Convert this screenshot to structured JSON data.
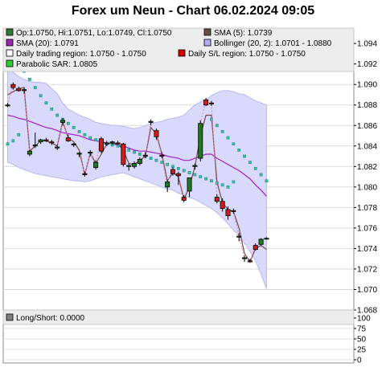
{
  "title": "Forex um Neun - Chart 06.02.2024 09:05",
  "legend": [
    {
      "text": "Op:1.0750, Hi:1.0751, Lo:1.0749, Cl:1.0750",
      "color": "#2e7d32"
    },
    {
      "text": "SMA (5): 1.0739",
      "color": "#6d4c41"
    },
    {
      "text": "SMA (20): 1.0791",
      "color": "#9c27b0"
    },
    {
      "text": "Bollinger (20, 2): 1.0701 - 1.0880",
      "color": "#b0b0f0"
    },
    {
      "text": "Daily trading region: 1.0750 - 1.0750",
      "color": "#ffffff"
    },
    {
      "text": "Daily S/L region: 1.0750 - 1.0750",
      "color": "#d50000"
    },
    {
      "text": "Parabolic SAR: 1.0805",
      "color": "#33cc33"
    }
  ],
  "lower_legend": {
    "text": "Long/Short: 0.0000",
    "color": "#808080"
  },
  "chart_data": [
    {
      "type": "candlestick",
      "title": "Forex um Neun - Chart 06.02.2024 09:05",
      "ylim": [
        1.068,
        1.0955
      ],
      "yticks": [
        "1.068",
        "1.070",
        "1.072",
        "1.074",
        "1.076",
        "1.078",
        "1.080",
        "1.082",
        "1.084",
        "1.086",
        "1.088",
        "1.090",
        "1.092",
        "1.094"
      ],
      "candles": [
        {
          "o": 1.088,
          "h": 1.0882,
          "l": 1.0878,
          "c": 1.088
        },
        {
          "o": 1.09,
          "h": 1.0902,
          "l": 1.0895,
          "c": 1.0897
        },
        {
          "o": 1.0896,
          "h": 1.0898,
          "l": 1.0893,
          "c": 1.0894
        },
        {
          "o": 1.0895,
          "h": 1.0897,
          "l": 1.0891,
          "c": 1.0894
        },
        {
          "o": 1.0832,
          "h": 1.0836,
          "l": 1.083,
          "c": 1.0835
        },
        {
          "o": 1.084,
          "h": 1.0853,
          "l": 1.0838,
          "c": 1.0841
        },
        {
          "o": 1.0844,
          "h": 1.0847,
          "l": 1.0842,
          "c": 1.0846
        },
        {
          "o": 1.0846,
          "h": 1.0848,
          "l": 1.0844,
          "c": 1.0845
        },
        {
          "o": 1.0844,
          "h": 1.0846,
          "l": 1.0841,
          "c": 1.0843
        },
        {
          "o": 1.0838,
          "h": 1.0841,
          "l": 1.0836,
          "c": 1.0839
        },
        {
          "o": 1.0863,
          "h": 1.0867,
          "l": 1.086,
          "c": 1.0865
        },
        {
          "o": 1.0848,
          "h": 1.0851,
          "l": 1.0844,
          "c": 1.0845
        },
        {
          "o": 1.0841,
          "h": 1.0843,
          "l": 1.0839,
          "c": 1.0842
        },
        {
          "o": 1.0832,
          "h": 1.0834,
          "l": 1.0829,
          "c": 1.0833
        },
        {
          "o": 1.0813,
          "h": 1.0815,
          "l": 1.081,
          "c": 1.0812
        },
        {
          "o": 1.0833,
          "h": 1.0836,
          "l": 1.083,
          "c": 1.0834
        },
        {
          "o": 1.0819,
          "h": 1.0826,
          "l": 1.0817,
          "c": 1.0824
        },
        {
          "o": 1.0847,
          "h": 1.0849,
          "l": 1.0833,
          "c": 1.0835
        },
        {
          "o": 1.0842,
          "h": 1.0845,
          "l": 1.084,
          "c": 1.0843
        },
        {
          "o": 1.0843,
          "h": 1.0845,
          "l": 1.0841,
          "c": 1.0844
        },
        {
          "o": 1.0843,
          "h": 1.0845,
          "l": 1.0841,
          "c": 1.0842
        },
        {
          "o": 1.0842,
          "h": 1.0843,
          "l": 1.082,
          "c": 1.0822
        },
        {
          "o": 1.082,
          "h": 1.0823,
          "l": 1.0816,
          "c": 1.0821
        },
        {
          "o": 1.082,
          "h": 1.0825,
          "l": 1.0818,
          "c": 1.0823
        },
        {
          "o": 1.0823,
          "h": 1.0829,
          "l": 1.0821,
          "c": 1.0827
        },
        {
          "o": 1.0831,
          "h": 1.0834,
          "l": 1.0828,
          "c": 1.083
        },
        {
          "o": 1.0863,
          "h": 1.0866,
          "l": 1.086,
          "c": 1.0864
        },
        {
          "o": 1.0855,
          "h": 1.0857,
          "l": 1.0846,
          "c": 1.0849
        },
        {
          "o": 1.0831,
          "h": 1.0834,
          "l": 1.0828,
          "c": 1.083
        },
        {
          "o": 1.08,
          "h": 1.0807,
          "l": 1.0795,
          "c": 1.0805
        },
        {
          "o": 1.0817,
          "h": 1.0819,
          "l": 1.0811,
          "c": 1.0813
        },
        {
          "o": 1.0813,
          "h": 1.0815,
          "l": 1.0802,
          "c": 1.0811
        },
        {
          "o": 1.079,
          "h": 1.0792,
          "l": 1.0785,
          "c": 1.0787
        },
        {
          "o": 1.0796,
          "h": 1.0807,
          "l": 1.079,
          "c": 1.0809
        },
        {
          "o": 1.082,
          "h": 1.0823,
          "l": 1.0817,
          "c": 1.0821
        },
        {
          "o": 1.0828,
          "h": 1.0865,
          "l": 1.0825,
          "c": 1.0862
        },
        {
          "o": 1.0885,
          "h": 1.0887,
          "l": 1.0879,
          "c": 1.088
        },
        {
          "o": 1.0882,
          "h": 1.0884,
          "l": 1.0879,
          "c": 1.0881
        },
        {
          "o": 1.079,
          "h": 1.0793,
          "l": 1.0784,
          "c": 1.0786
        },
        {
          "o": 1.0786,
          "h": 1.0789,
          "l": 1.0776,
          "c": 1.0779
        },
        {
          "o": 1.0778,
          "h": 1.0781,
          "l": 1.0768,
          "c": 1.0772
        },
        {
          "o": 1.0777,
          "h": 1.0779,
          "l": 1.0774,
          "c": 1.0776
        },
        {
          "o": 1.0752,
          "h": 1.0755,
          "l": 1.0747,
          "c": 1.0752
        },
        {
          "o": 1.073,
          "h": 1.0733,
          "l": 1.0727,
          "c": 1.0731
        },
        {
          "o": 1.0728,
          "h": 1.073,
          "l": 1.0726,
          "c": 1.0727
        },
        {
          "o": 1.0743,
          "h": 1.0745,
          "l": 1.0738,
          "c": 1.0739
        },
        {
          "o": 1.0744,
          "h": 1.075,
          "l": 1.0743,
          "c": 1.0749
        },
        {
          "o": 1.075,
          "h": 1.0751,
          "l": 1.0749,
          "c": 1.075
        }
      ],
      "sma5": [
        1.089,
        1.0893,
        1.0896,
        1.0897,
        1.0835,
        1.084,
        1.0845,
        1.0845,
        1.0843,
        1.084,
        1.0864,
        1.0848,
        1.0844,
        1.0836,
        1.0812,
        1.0833,
        1.0823,
        1.0832,
        1.0842,
        1.0843,
        1.0842,
        1.0836,
        1.0823,
        1.0822,
        1.0826,
        1.083,
        1.0858,
        1.0852,
        1.0832,
        1.0806,
        1.0814,
        1.081,
        1.0788,
        1.08,
        1.082,
        1.085,
        1.087,
        1.087,
        1.0805,
        1.0785,
        1.0778,
        1.0776,
        1.076,
        1.0735,
        1.0727,
        1.074,
        1.0743,
        1.0739
      ],
      "sma20": [
        1.087,
        1.0869,
        1.0867,
        1.0866,
        1.0864,
        1.0862,
        1.086,
        1.0858,
        1.0857,
        1.0855,
        1.0853,
        1.0852,
        1.0851,
        1.085,
        1.0848,
        1.0846,
        1.0845,
        1.0844,
        1.0843,
        1.0842,
        1.0841,
        1.084,
        1.0838,
        1.0836,
        1.0835,
        1.0835,
        1.0834,
        1.0833,
        1.0832,
        1.083,
        1.0829,
        1.0828,
        1.0826,
        1.0826,
        1.0828,
        1.083,
        1.0832,
        1.0832,
        1.0828,
        1.0825,
        1.0822,
        1.0819,
        1.0816,
        1.0812,
        1.0808,
        1.0802,
        1.0797,
        1.0791
      ],
      "bollinger_upper": [
        1.0915,
        1.0912,
        1.0908,
        1.0905,
        1.0903,
        1.0902,
        1.0902,
        1.0901,
        1.0896,
        1.0891,
        1.0882,
        1.0876,
        1.0873,
        1.087,
        1.0868,
        1.0866,
        1.0863,
        1.0862,
        1.0861,
        1.086,
        1.086,
        1.0859,
        1.0858,
        1.0857,
        1.0858,
        1.086,
        1.0862,
        1.0863,
        1.0864,
        1.0866,
        1.0867,
        1.0868,
        1.087,
        1.0875,
        1.088,
        1.0883,
        1.0885,
        1.0889,
        1.0892,
        1.0894,
        1.0894,
        1.0893,
        1.0891,
        1.089,
        1.0887,
        1.0884,
        1.0882,
        1.088
      ],
      "bollinger_lower": [
        1.0824,
        1.0822,
        1.0819,
        1.0817,
        1.0815,
        1.0813,
        1.0812,
        1.0811,
        1.081,
        1.0809,
        1.0808,
        1.0807,
        1.0806,
        1.0806,
        1.0805,
        1.0806,
        1.0808,
        1.081,
        1.0811,
        1.0812,
        1.0813,
        1.0814,
        1.0812,
        1.081,
        1.0808,
        1.0806,
        1.0804,
        1.0802,
        1.08,
        1.0798,
        1.0797,
        1.0794,
        1.0792,
        1.079,
        1.0788,
        1.0785,
        1.0782,
        1.0779,
        1.0775,
        1.077,
        1.0764,
        1.0758,
        1.0752,
        1.0745,
        1.0737,
        1.0728,
        1.0715,
        1.0701
      ],
      "psar": [
        1.0842,
        1.0845,
        1.0851,
        1.0913,
        1.0905,
        1.0897,
        1.0889,
        1.0882,
        1.0876,
        1.087,
        1.0866,
        1.0862,
        1.0858,
        1.0854,
        1.0851,
        1.0848,
        1.0846,
        1.0844,
        1.0842,
        1.0841,
        1.084,
        1.0838,
        1.0836,
        1.0834,
        1.0832,
        1.083,
        1.0828,
        1.0826,
        1.0824,
        1.0822,
        1.082,
        1.0818,
        1.0816,
        1.0814,
        1.0812,
        1.081,
        1.0808,
        1.0806,
        1.0804,
        1.0802,
        1.08,
        1.0805
      ],
      "psar_after": [
        1.0866,
        1.086,
        1.0854,
        1.0848,
        1.0842,
        1.0836,
        1.083,
        1.0824,
        1.0818,
        1.0812,
        1.0806
      ],
      "legend": [
        "Op:1.0750, Hi:1.0751, Lo:1.0749, Cl:1.0750",
        "SMA (5): 1.0739",
        "SMA (20): 1.0791",
        "Bollinger (20, 2): 1.0701 - 1.0880",
        "Daily trading region: 1.0750 - 1.0750",
        "Daily S/L region: 1.0750 - 1.0750",
        "Parabolic SAR: 1.0805"
      ]
    },
    {
      "type": "line",
      "legend": [
        "Long/Short: 0.0000"
      ],
      "ylim": [
        0,
        100
      ],
      "yticks": [
        "0",
        "25",
        "50",
        "75",
        "100"
      ],
      "values": [
        0
      ]
    }
  ]
}
